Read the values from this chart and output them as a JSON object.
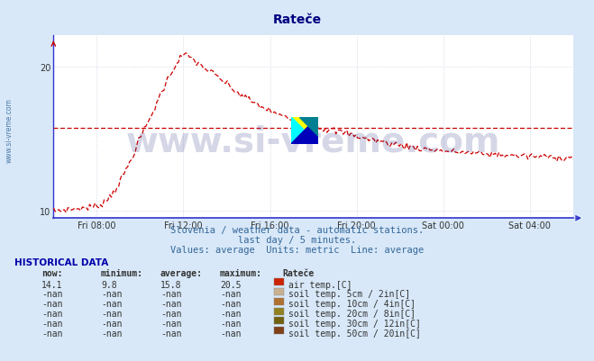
{
  "title": "Rateče",
  "title_color": "#000080",
  "title_fontsize": 10,
  "bg_color": "#d8e8f8",
  "plot_bg_color": "#ffffff",
  "grid_color": "#c8d0e0",
  "line_color": "#cc0000",
  "avg_line_value": 15.8,
  "axis_color": "#3333cc",
  "ylim_min": 9.5,
  "ylim_max": 22.2,
  "yticks": [
    10,
    20
  ],
  "watermark_text": "www.si-vreme.com",
  "yside_text": "www.si-vreme.com",
  "subtitle1": "Slovenia / weather data - automatic stations.",
  "subtitle2": "last day / 5 minutes.",
  "subtitle3": "Values: average  Units: metric  Line: average",
  "subtitle_color": "#336699",
  "subtitle_fontsize": 7.5,
  "hist_header": "HISTORICAL DATA",
  "hist_color": "#0000aa",
  "table_col_headers": [
    "now:",
    "minimum:",
    "average:",
    "maximum:",
    "Rateče"
  ],
  "table_rows": [
    [
      "14.1",
      "9.8",
      "15.8",
      "20.5",
      "air temp.[C]"
    ],
    [
      "-nan",
      "-nan",
      "-nan",
      "-nan",
      "soil temp. 5cm / 2in[C]"
    ],
    [
      "-nan",
      "-nan",
      "-nan",
      "-nan",
      "soil temp. 10cm / 4in[C]"
    ],
    [
      "-nan",
      "-nan",
      "-nan",
      "-nan",
      "soil temp. 20cm / 8in[C]"
    ],
    [
      "-nan",
      "-nan",
      "-nan",
      "-nan",
      "soil temp. 30cm / 12in[C]"
    ],
    [
      "-nan",
      "-nan",
      "-nan",
      "-nan",
      "soil temp. 50cm / 20in[C]"
    ]
  ],
  "row_colors": [
    "#cc2200",
    "#c8b090",
    "#b07030",
    "#908020",
    "#706010",
    "#804018"
  ],
  "xtick_labels": [
    "Fri 08:00",
    "Fri 12:00",
    "Fri 16:00",
    "Fri 20:00",
    "Sat 00:00",
    "Sat 04:00"
  ],
  "xtick_hours": [
    2,
    6,
    10,
    14,
    18,
    22
  ],
  "xlim_hours": 24,
  "logo_colors": {
    "yellow": "#ffff00",
    "cyan": "#00ffff",
    "blue": "#0000bb",
    "teal": "#008090"
  },
  "watermark_color": "#1a237e",
  "watermark_alpha": 0.18,
  "watermark_fontsize": 28
}
